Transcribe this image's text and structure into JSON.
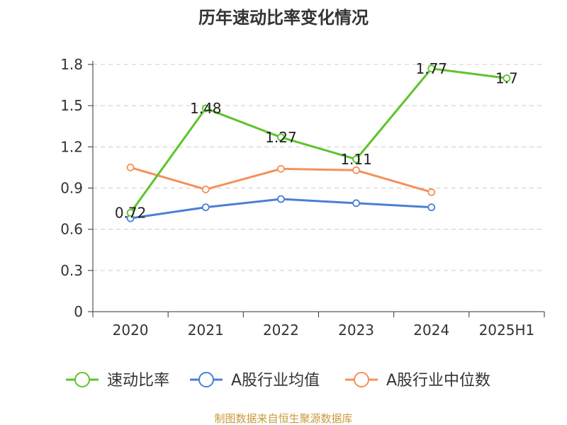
{
  "chart_data": {
    "type": "line",
    "title": "历年速动比率变化情况",
    "categories": [
      "2020",
      "2021",
      "2022",
      "2023",
      "2024",
      "2025H1"
    ],
    "yticks": [
      "0",
      "0.3",
      "0.6",
      "0.9",
      "1.2",
      "1.5",
      "1.8"
    ],
    "ylim": [
      0,
      1.8
    ],
    "grid": true,
    "legend_position": "bottom",
    "series": [
      {
        "name": "速动比率",
        "color": "#5dc42b",
        "values": [
          0.72,
          1.48,
          1.27,
          1.11,
          1.77,
          1.7
        ],
        "labels": [
          "0.72",
          "1.48",
          "1.27",
          "1.11",
          "1.77",
          "1.7"
        ]
      },
      {
        "name": "A股行业均值",
        "color": "#4a7fd8",
        "values": [
          0.68,
          0.76,
          0.82,
          0.79,
          0.76,
          null
        ]
      },
      {
        "name": "A股行业中位数",
        "color": "#f5905a",
        "values": [
          1.05,
          0.89,
          1.04,
          1.03,
          0.87,
          null
        ]
      }
    ]
  },
  "source_text": "制图数据来自恒生聚源数据库"
}
